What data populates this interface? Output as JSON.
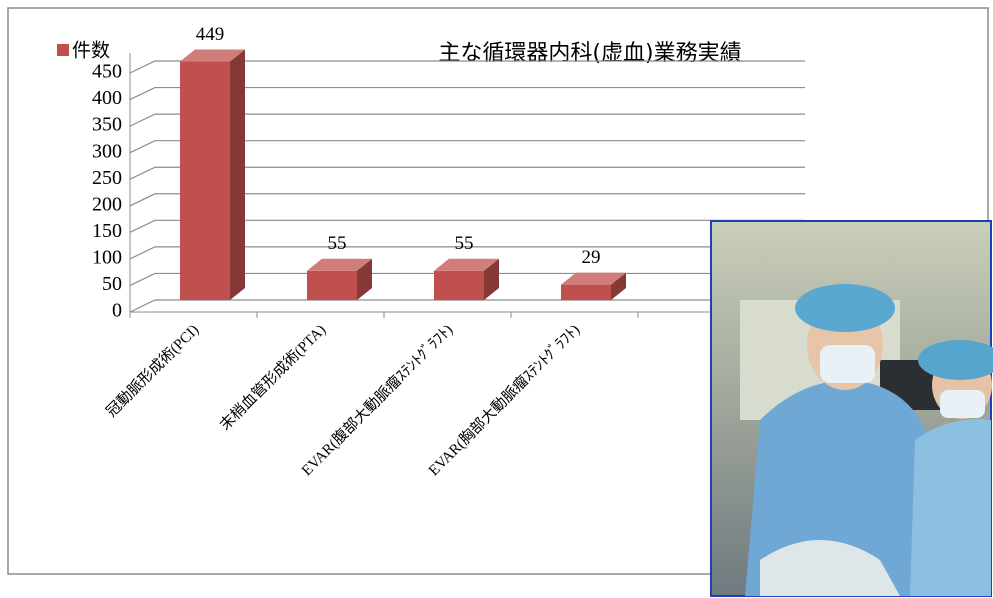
{
  "chart_data": {
    "type": "bar",
    "title": "主な循環器内科(虚血)業務実績",
    "categories": [
      "冠動脈形成術(PCI)",
      "末梢血管形成術(PTA)",
      "EVAR(腹部大動脈瘤ｽﾃﾝﾄｸﾞﾗﾌﾄ)",
      "EVAR(胸部大動脈瘤ｽﾃﾝﾄｸﾞﾗﾌﾄ)"
    ],
    "series": [
      {
        "name": "件数",
        "color": "#c0504d",
        "values": [
          449,
          55,
          55,
          29
        ]
      }
    ],
    "ylim": [
      0,
      450
    ],
    "yticks": [
      0,
      50,
      100,
      150,
      200,
      250,
      300,
      350,
      400,
      450
    ],
    "grid": true,
    "legend": "top-left"
  }
}
